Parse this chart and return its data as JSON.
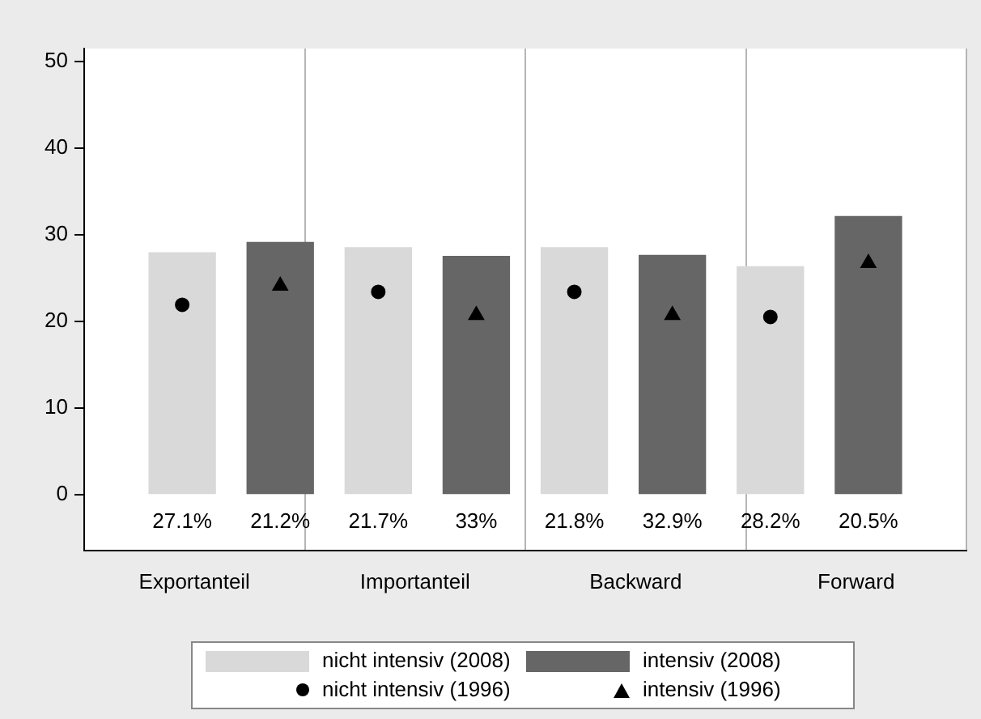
{
  "chart_data": {
    "type": "bar",
    "categories": [
      "Exportanteil",
      "Importanteil",
      "Backward",
      "Forward"
    ],
    "series": [
      {
        "name": "nicht intensiv (2008)",
        "type": "bar",
        "color": "#d9d9d9",
        "values": [
          27.9,
          28.5,
          28.5,
          26.3
        ]
      },
      {
        "name": "intensiv (2008)",
        "type": "bar",
        "color": "#666666",
        "values": [
          29.1,
          27.5,
          27.6,
          32.1
        ]
      },
      {
        "name": "nicht intensiv (1996)",
        "type": "scatter",
        "marker": "circle",
        "color": "#000000",
        "x": [
          "Exportanteil",
          "Importanteil",
          "Backward",
          "Forward"
        ],
        "values": [
          21.9,
          23.4,
          23.4,
          20.5
        ]
      },
      {
        "name": "intensiv (1996)",
        "type": "scatter",
        "marker": "triangle",
        "color": "#000000",
        "x": [
          "Exportanteil",
          "Importanteil",
          "Backward",
          "Forward"
        ],
        "values": [
          24.1,
          20.7,
          20.7,
          26.7
        ]
      }
    ],
    "ylim": [
      -6.5,
      51.5
    ],
    "yticks": [
      0,
      10,
      20,
      30,
      40,
      50
    ],
    "grid": "x",
    "legend": "bottom",
    "annotations": [
      "27.1%",
      "21.2%",
      "21.7%",
      "33%",
      "21.8%",
      "32.9%",
      "28.2%",
      "20.5%"
    ]
  }
}
